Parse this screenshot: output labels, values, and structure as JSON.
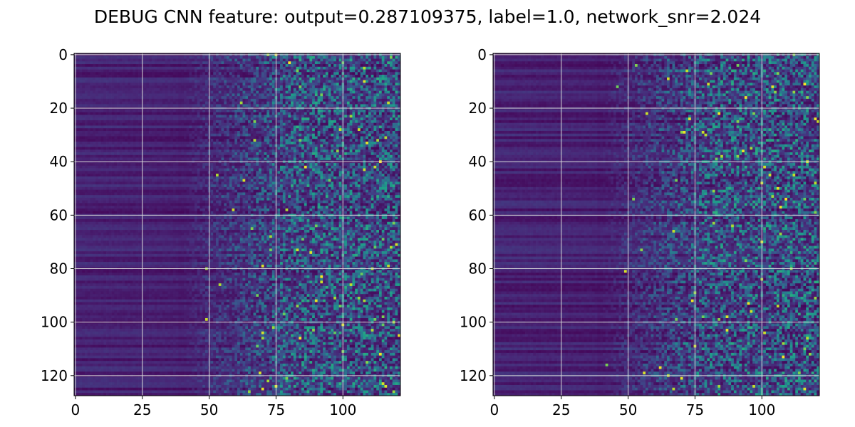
{
  "figure": {
    "title": "DEBUG CNN feature: output=0.287109375, label=1.0, network_snr=2.024"
  },
  "chart_data": [
    {
      "type": "heatmap",
      "title": "",
      "xlabel": "",
      "ylabel": "",
      "xlim": [
        -0.5,
        121.5
      ],
      "ylim": [
        127.5,
        -0.5
      ],
      "y_axis_inverted": true,
      "grid": true,
      "colormap": "viridis",
      "value_range": [
        0,
        1
      ],
      "x_ticks": [
        0,
        25,
        50,
        75,
        100
      ],
      "y_ticks": [
        0,
        20,
        40,
        60,
        80,
        100,
        120
      ],
      "rows": 128,
      "cols": 122,
      "pattern": "low uniform values on the left (columns 0-40), increasing scattered noise toward the right with sparse bright pixels beyond column 70",
      "seed": 7
    },
    {
      "type": "heatmap",
      "title": "",
      "xlabel": "",
      "ylabel": "",
      "xlim": [
        -0.5,
        121.5
      ],
      "ylim": [
        127.5,
        -0.5
      ],
      "y_axis_inverted": true,
      "grid": true,
      "colormap": "viridis",
      "value_range": [
        0,
        1
      ],
      "x_ticks": [
        0,
        25,
        50,
        75,
        100
      ],
      "y_ticks": [
        0,
        20,
        40,
        60,
        80,
        100,
        120
      ],
      "rows": 128,
      "cols": 122,
      "pattern": "low uniform values on the left (columns 0-40), increasing scattered noise toward the right with sparse bright pixels beyond column 70",
      "seed": 13
    }
  ],
  "colors": {
    "grid": "#d9d9d9",
    "axes": "#000000",
    "viridis": [
      "#440154",
      "#482878",
      "#3e4989",
      "#31688e",
      "#26828e",
      "#1f9e89",
      "#35b779",
      "#6ece58",
      "#b5de2b",
      "#fde725"
    ]
  }
}
